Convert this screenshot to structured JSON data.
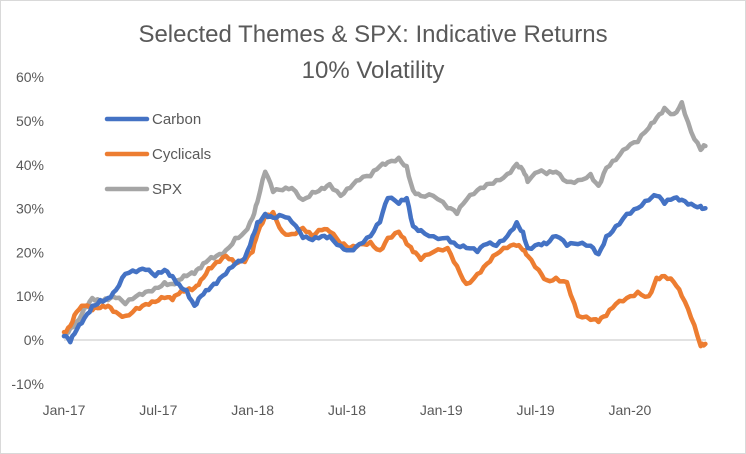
{
  "chart_data": {
    "type": "line",
    "title": "Selected Themes & SPX: Indicative Returns",
    "subtitle": "10% Volatility",
    "xlabel": "",
    "ylabel": "",
    "x_ticks": [
      "Jan-17",
      "Jul-17",
      "Jan-18",
      "Jul-18",
      "Jan-19",
      "Jul-19",
      "Jan-20"
    ],
    "y_ticks": [
      "-10%",
      "0%",
      "10%",
      "20%",
      "30%",
      "40%",
      "50%",
      "60%"
    ],
    "ylim": [
      -10,
      60
    ],
    "xlim_months": [
      0,
      42
    ],
    "grid": "zero-line only",
    "legend": "top-left",
    "x_unit": "months since Jan-2017",
    "series": [
      {
        "name": "Carbon",
        "color": "#4472C4",
        "x": [
          0,
          0.4,
          0.8,
          1.3,
          1.8,
          2.3,
          2.8,
          3.3,
          3.9,
          4.6,
          5.2,
          5.8,
          6.4,
          6.9,
          7.3,
          7.8,
          8.3,
          8.7,
          9.2,
          9.7,
          10.3,
          10.9,
          11.5,
          12.0,
          12.3,
          12.8,
          13.3,
          13.9,
          14.5,
          15.2,
          15.8,
          16.4,
          16.9,
          17.6,
          18.2,
          18.8,
          19.5,
          20.1,
          20.6,
          21.3,
          21.8,
          22.2,
          22.7,
          23.5,
          24.4,
          25.0,
          25.6,
          26.3,
          26.9,
          27.5,
          28.2,
          28.8,
          29.2,
          29.5,
          30.2,
          30.7,
          31.3,
          32.0,
          32.7,
          33.5,
          34.0,
          34.5,
          35.1,
          35.8,
          36.5,
          37.2,
          37.7,
          38.2,
          38.8,
          39.3,
          39.9,
          40.5,
          40.8
        ],
        "values": [
          0.9,
          -0.5,
          2.3,
          5.0,
          7.8,
          9.1,
          9.6,
          11.4,
          15.1,
          15.5,
          16.0,
          14.6,
          16.0,
          14.6,
          12.8,
          11.4,
          7.8,
          10.0,
          11.4,
          12.8,
          15.1,
          17.4,
          18.7,
          23.7,
          26.9,
          28.8,
          27.9,
          28.3,
          26.9,
          23.3,
          22.8,
          23.7,
          23.7,
          21.5,
          20.5,
          21.9,
          23.7,
          26.9,
          32.4,
          31.1,
          32.4,
          26.0,
          25.1,
          23.7,
          23.3,
          21.5,
          21.0,
          20.1,
          21.9,
          21.5,
          23.7,
          26.9,
          24.7,
          21.0,
          21.9,
          21.9,
          23.7,
          21.5,
          21.9,
          21.5,
          19.6,
          23.7,
          26.0,
          28.8,
          30.1,
          31.9,
          32.9,
          31.1,
          32.4,
          32.0,
          31.1,
          30.6,
          30.1
        ]
      },
      {
        "name": "Cyclicals",
        "color": "#ED7D31",
        "x": [
          0,
          0.4,
          0.8,
          1.3,
          1.8,
          2.3,
          2.8,
          3.3,
          3.9,
          4.6,
          5.2,
          5.8,
          6.4,
          6.9,
          7.3,
          7.8,
          8.3,
          8.7,
          9.2,
          9.7,
          10.3,
          10.9,
          11.5,
          12.0,
          12.3,
          12.8,
          13.3,
          13.9,
          14.5,
          15.2,
          15.8,
          16.4,
          16.9,
          17.6,
          18.2,
          18.8,
          19.5,
          20.1,
          20.6,
          21.3,
          21.8,
          22.2,
          22.7,
          23.5,
          24.4,
          25.0,
          25.6,
          26.3,
          26.9,
          27.5,
          28.2,
          28.8,
          29.2,
          29.5,
          30.2,
          30.7,
          31.3,
          32.0,
          32.7,
          33.5,
          34.0,
          34.5,
          35.1,
          35.8,
          36.5,
          37.2,
          37.7,
          38.2,
          38.8,
          39.3,
          39.9,
          40.5,
          40.8
        ],
        "values": [
          1.8,
          3.2,
          6.4,
          7.8,
          6.8,
          7.3,
          7.8,
          6.4,
          5.5,
          7.3,
          8.2,
          8.7,
          9.6,
          9.1,
          10.5,
          11.4,
          11.9,
          13.7,
          16.4,
          17.8,
          19.2,
          17.4,
          17.8,
          20.1,
          24.2,
          28.3,
          29.2,
          24.7,
          24.2,
          25.6,
          23.7,
          25.1,
          24.7,
          21.9,
          21.0,
          21.9,
          22.4,
          20.5,
          23.3,
          24.7,
          21.9,
          20.1,
          18.3,
          20.1,
          21.0,
          16.9,
          12.8,
          15.1,
          17.4,
          19.6,
          21.0,
          21.5,
          20.5,
          19.2,
          16.0,
          13.7,
          14.2,
          13.2,
          5.5,
          4.6,
          4.1,
          5.5,
          8.2,
          9.6,
          11.0,
          10.0,
          14.2,
          14.6,
          13.2,
          10.0,
          5.0,
          -1.4,
          -0.9
        ]
      },
      {
        "name": "SPX",
        "color": "#A5A5A5",
        "x": [
          0,
          0.4,
          0.8,
          1.3,
          1.8,
          2.3,
          2.8,
          3.3,
          3.9,
          4.6,
          5.2,
          5.8,
          6.4,
          6.9,
          7.3,
          7.8,
          8.3,
          8.7,
          9.2,
          9.7,
          10.3,
          10.9,
          11.5,
          12.0,
          12.3,
          12.8,
          13.3,
          13.9,
          14.5,
          15.2,
          15.8,
          16.4,
          16.9,
          17.6,
          18.2,
          18.8,
          19.5,
          20.1,
          20.6,
          21.3,
          21.8,
          22.2,
          22.7,
          23.5,
          24.4,
          25.0,
          25.6,
          26.3,
          26.9,
          27.5,
          28.2,
          28.8,
          29.2,
          29.5,
          30.2,
          30.7,
          31.3,
          32.0,
          32.7,
          33.5,
          34.0,
          34.5,
          35.1,
          35.8,
          36.5,
          37.2,
          37.7,
          38.2,
          38.8,
          39.3,
          39.9,
          40.5,
          40.8
        ],
        "values": [
          0.9,
          2.7,
          4.1,
          7.3,
          9.6,
          8.7,
          9.1,
          9.6,
          8.2,
          10.0,
          11.0,
          11.9,
          13.2,
          12.8,
          13.7,
          14.6,
          15.1,
          16.4,
          18.3,
          19.2,
          20.5,
          23.3,
          24.7,
          27.9,
          31.5,
          38.4,
          33.8,
          34.2,
          34.7,
          32.0,
          33.8,
          34.7,
          35.6,
          32.9,
          34.7,
          36.5,
          37.4,
          39.7,
          40.6,
          41.6,
          39.7,
          34.2,
          32.9,
          32.9,
          30.1,
          28.8,
          32.0,
          34.2,
          35.6,
          36.5,
          37.9,
          40.2,
          38.8,
          36.1,
          38.4,
          37.9,
          38.4,
          36.1,
          36.5,
          37.9,
          35.2,
          39.3,
          41.1,
          43.8,
          45.2,
          48.4,
          50.7,
          53.0,
          51.6,
          54.3,
          47.5,
          43.4,
          44.3
        ]
      }
    ]
  }
}
